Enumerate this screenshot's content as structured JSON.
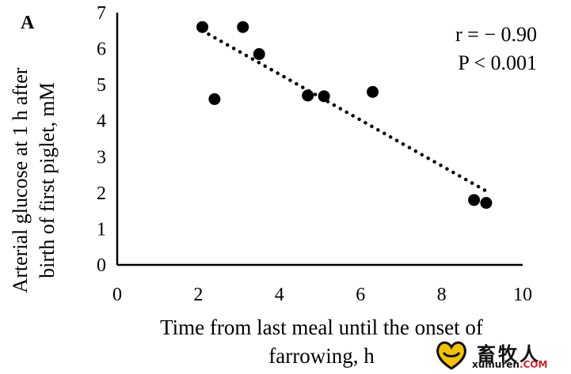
{
  "panel_label": "A",
  "chart_data": {
    "type": "scatter",
    "xlabel_lines": [
      "Time from last meal until the onset of",
      "farrowing, h"
    ],
    "ylabel_lines": [
      "Arterial glucose at 1 h after",
      "birth of first piglet, mM"
    ],
    "xlim": [
      0,
      10
    ],
    "ylim": [
      0,
      7
    ],
    "xticks": [
      0,
      2,
      4,
      6,
      8,
      10
    ],
    "yticks": [
      0,
      1,
      2,
      3,
      4,
      5,
      6,
      7
    ],
    "points": [
      {
        "x": 2.1,
        "y": 6.6
      },
      {
        "x": 2.4,
        "y": 4.6
      },
      {
        "x": 3.1,
        "y": 6.6
      },
      {
        "x": 3.5,
        "y": 5.85
      },
      {
        "x": 4.7,
        "y": 4.7
      },
      {
        "x": 5.1,
        "y": 4.68
      },
      {
        "x": 6.3,
        "y": 4.8
      },
      {
        "x": 8.8,
        "y": 1.8
      },
      {
        "x": 9.1,
        "y": 1.72
      }
    ],
    "trendline": {
      "style": "dotted",
      "x_start": 2.1,
      "y_start": 6.5,
      "x_end": 9.1,
      "y_end": 2.05
    },
    "annotations": [
      "r = − 0.90",
      "P < 0.001"
    ],
    "grid": false,
    "legend": "none"
  },
  "watermark": {
    "cn": "畜牧人",
    "en": "xumuren",
    "com": ".COM"
  }
}
